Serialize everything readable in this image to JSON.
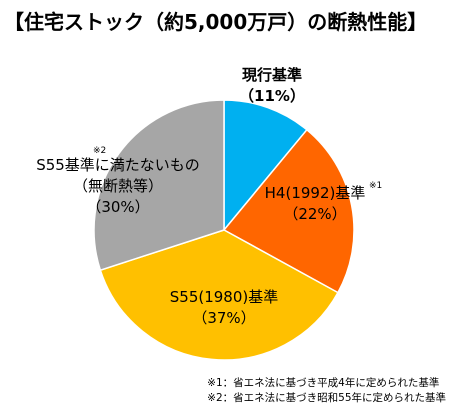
{
  "chart_data": {
    "type": "pie",
    "title": "【住宅ストック（約5,000万戸）の断熱性能】",
    "start_angle_deg": 0,
    "direction": "clockwise",
    "slices": [
      {
        "label": "現行基準",
        "value": 11,
        "value_label": "（11%）",
        "color": "#00B0F0",
        "note": ""
      },
      {
        "label": "H4(1992)基準",
        "value": 22,
        "value_label": "（22%）",
        "color": "#FF6600",
        "note": "※1"
      },
      {
        "label": "S55(1980)基準",
        "value": 37,
        "value_label": "（37%）",
        "color": "#FFC000",
        "note": ""
      },
      {
        "label": "S55基準に満たないもの",
        "label2": "（無断熱等）",
        "value": 30,
        "value_label": "（30%）",
        "color": "#A6A6A6",
        "note": "※2"
      }
    ],
    "footnotes": [
      "※1：省エネ法に基づき平成4年に定められた基準",
      "※2：省エネ法に基づき昭和55年に定められた基準"
    ]
  }
}
